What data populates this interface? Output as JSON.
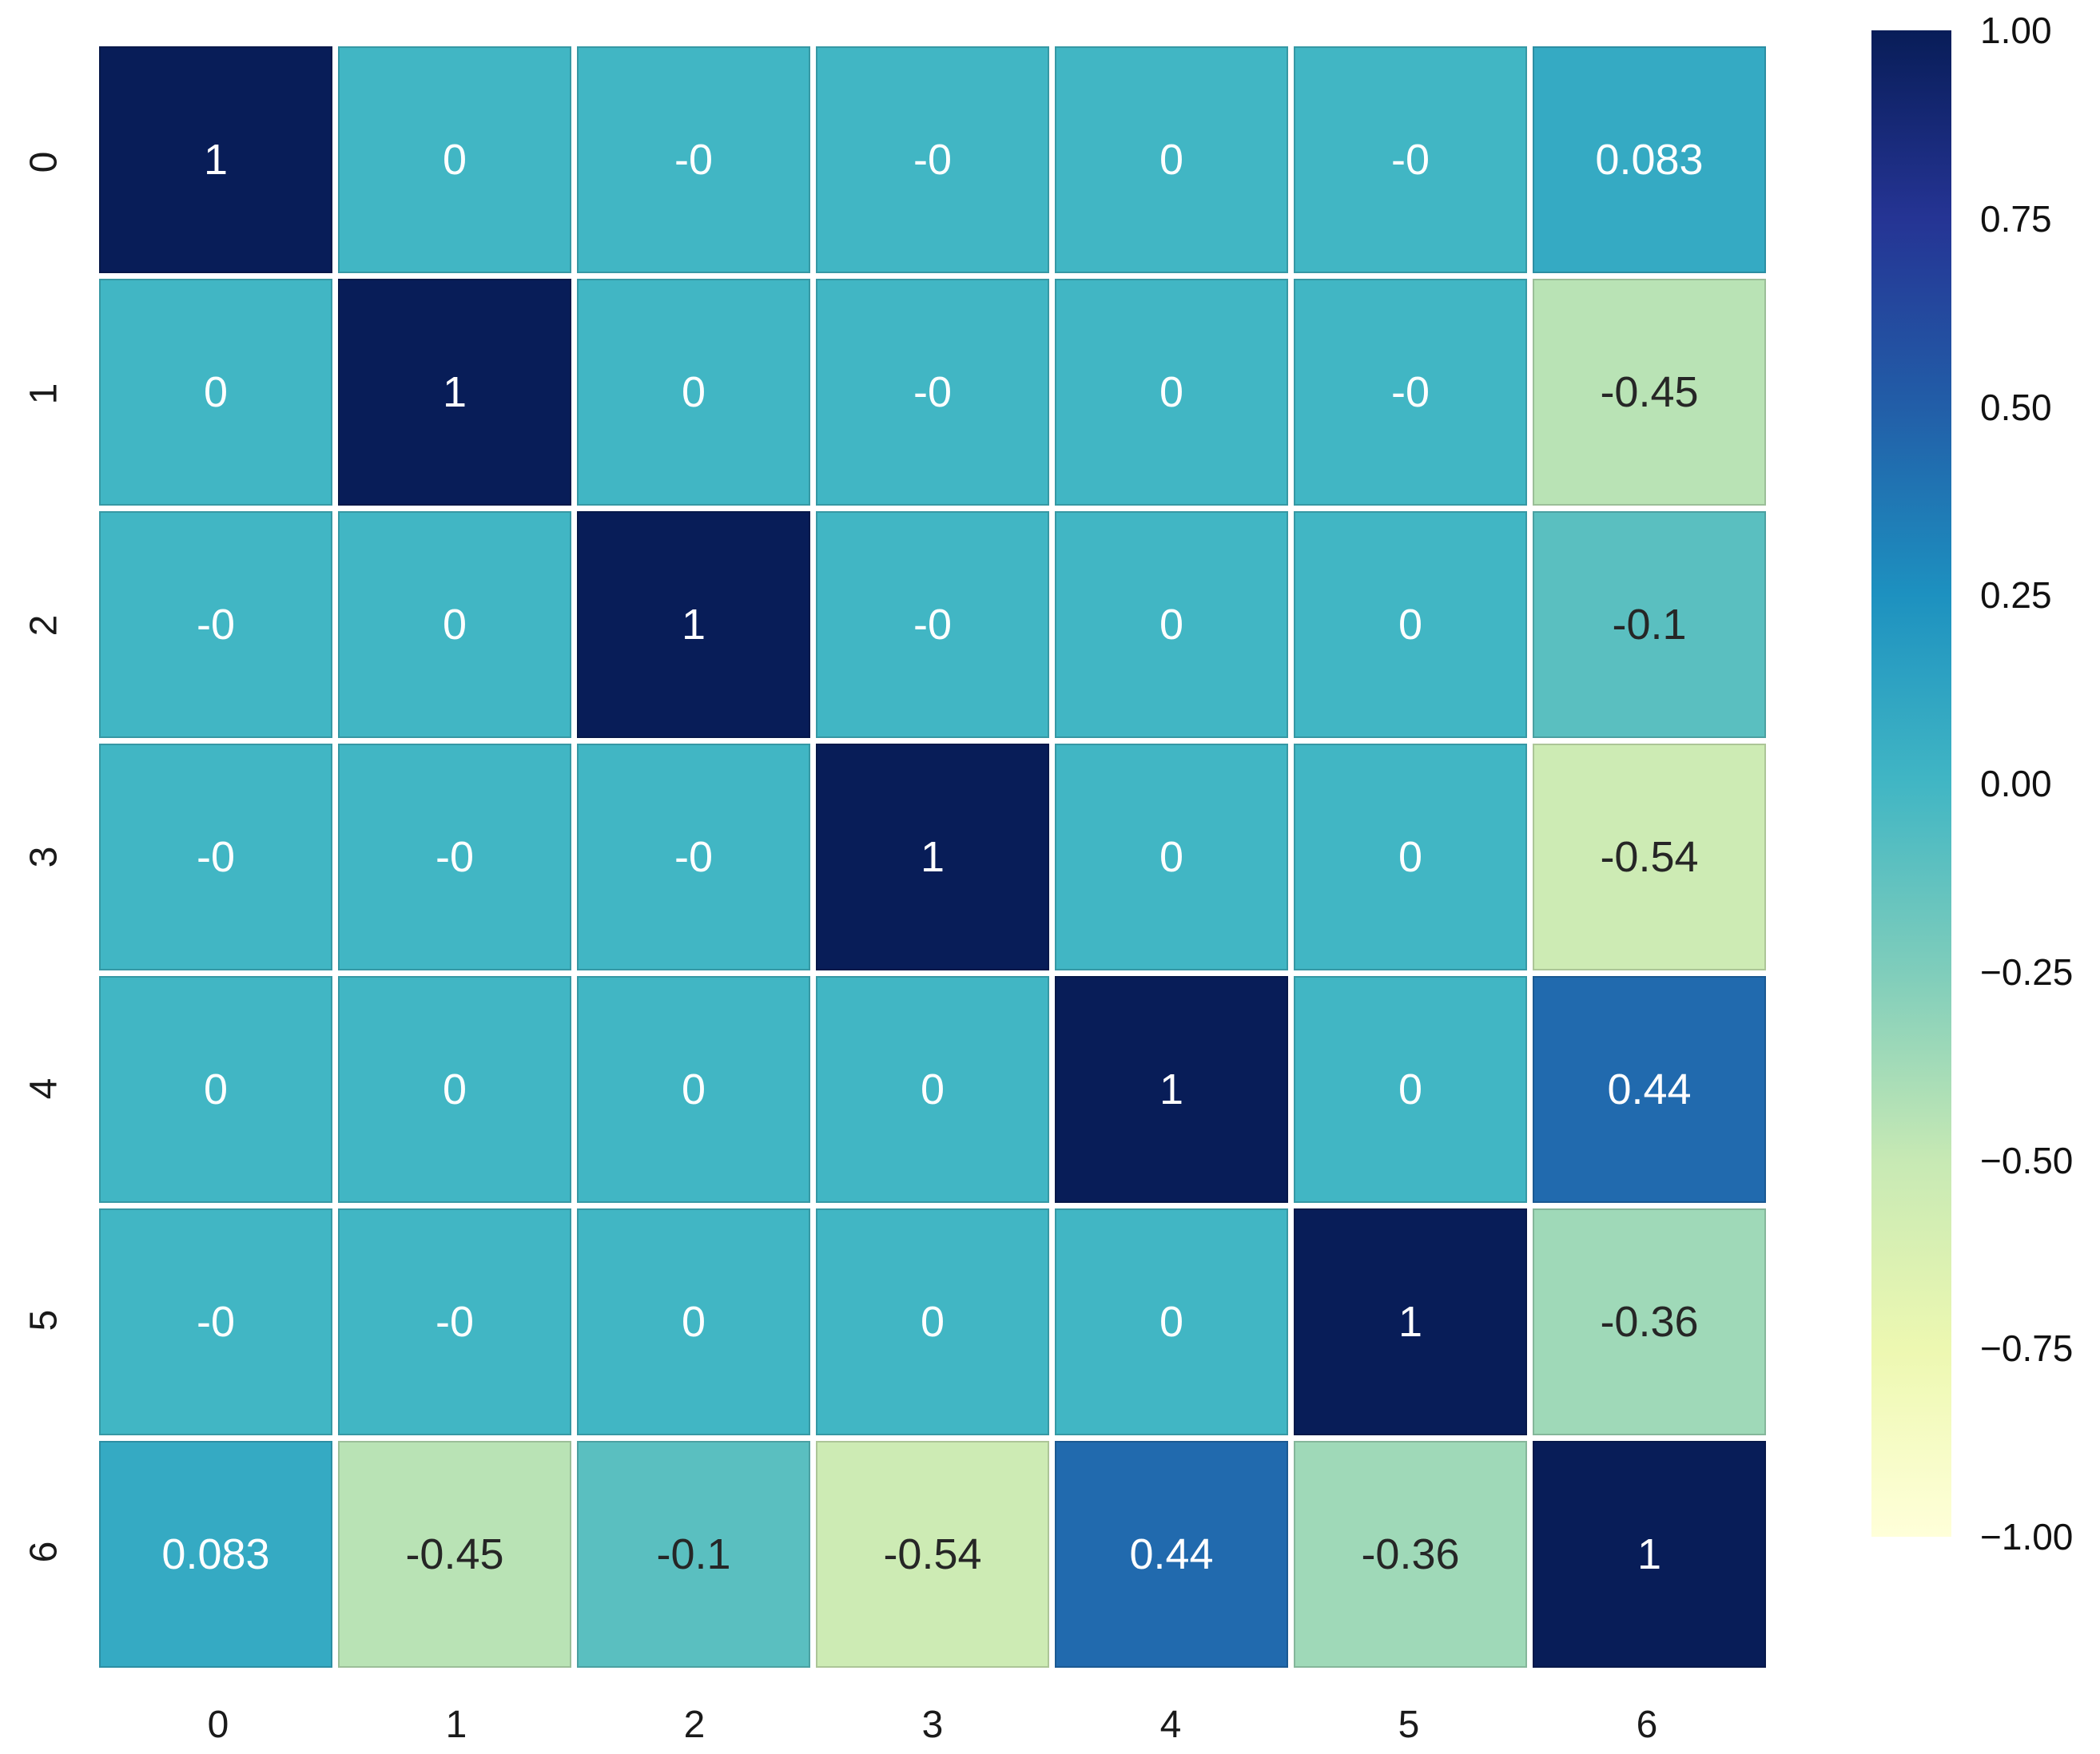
{
  "figure": {
    "background": "#ffffff"
  },
  "chart_data": {
    "type": "heatmap",
    "title": "",
    "xlabel": "",
    "ylabel": "",
    "x_labels": [
      "0",
      "1",
      "2",
      "3",
      "4",
      "5",
      "6"
    ],
    "y_labels": [
      "0",
      "1",
      "2",
      "3",
      "4",
      "5",
      "6"
    ],
    "matrix": [
      [
        1,
        0,
        0,
        0,
        0,
        0,
        0.083
      ],
      [
        0,
        1,
        0,
        0,
        0,
        0,
        -0.45
      ],
      [
        0,
        0,
        1,
        0,
        0,
        0,
        -0.1
      ],
      [
        0,
        0,
        0,
        1,
        0,
        0,
        -0.54
      ],
      [
        0,
        0,
        0,
        0,
        1,
        0,
        0.44
      ],
      [
        0,
        0,
        0,
        0,
        0,
        1,
        -0.36
      ],
      [
        0.083,
        -0.45,
        -0.1,
        -0.54,
        0.44,
        -0.36,
        1
      ]
    ],
    "annotations": [
      [
        "1",
        "0",
        "-0",
        "-0",
        "0",
        "-0",
        "0.083"
      ],
      [
        "0",
        "1",
        "0",
        "-0",
        "0",
        "-0",
        "-0.45"
      ],
      [
        "-0",
        "0",
        "1",
        "-0",
        "0",
        "0",
        "-0.1"
      ],
      [
        "-0",
        "-0",
        "-0",
        "1",
        "0",
        "0",
        "-0.54"
      ],
      [
        "0",
        "0",
        "0",
        "0",
        "1",
        "0",
        "0.44"
      ],
      [
        "-0",
        "-0",
        "0",
        "0",
        "0",
        "1",
        "-0.36"
      ],
      [
        "0.083",
        "-0.45",
        "-0.1",
        "-0.54",
        "0.44",
        "-0.36",
        "1"
      ]
    ],
    "vmin": -1,
    "vmax": 1,
    "colormap": {
      "name": "YlGnBu",
      "stops": [
        [
          0.0,
          "#ffffd9"
        ],
        [
          0.125,
          "#edf8b1"
        ],
        [
          0.25,
          "#c7e9b4"
        ],
        [
          0.375,
          "#7fcdbb"
        ],
        [
          0.5,
          "#41b6c4"
        ],
        [
          0.625,
          "#1d91c0"
        ],
        [
          0.75,
          "#225ea8"
        ],
        [
          0.875,
          "#253494"
        ],
        [
          1.0,
          "#081d58"
        ]
      ]
    },
    "colorbar": {
      "tick_labels": [
        "1.00",
        "0.75",
        "0.50",
        "0.25",
        "0.00",
        "−0.25",
        "−0.50",
        "−0.75",
        "−1.00"
      ],
      "tick_values": [
        1.0,
        0.75,
        0.5,
        0.25,
        0.0,
        -0.25,
        -0.5,
        -0.75,
        -1.0
      ]
    },
    "annotation_colors": {
      "on_dark": "#ffffff",
      "on_light": "#262626"
    },
    "tick_label_color": "#1a1a1a",
    "grid_line_color": "#ffffff",
    "legend_position": "right"
  }
}
